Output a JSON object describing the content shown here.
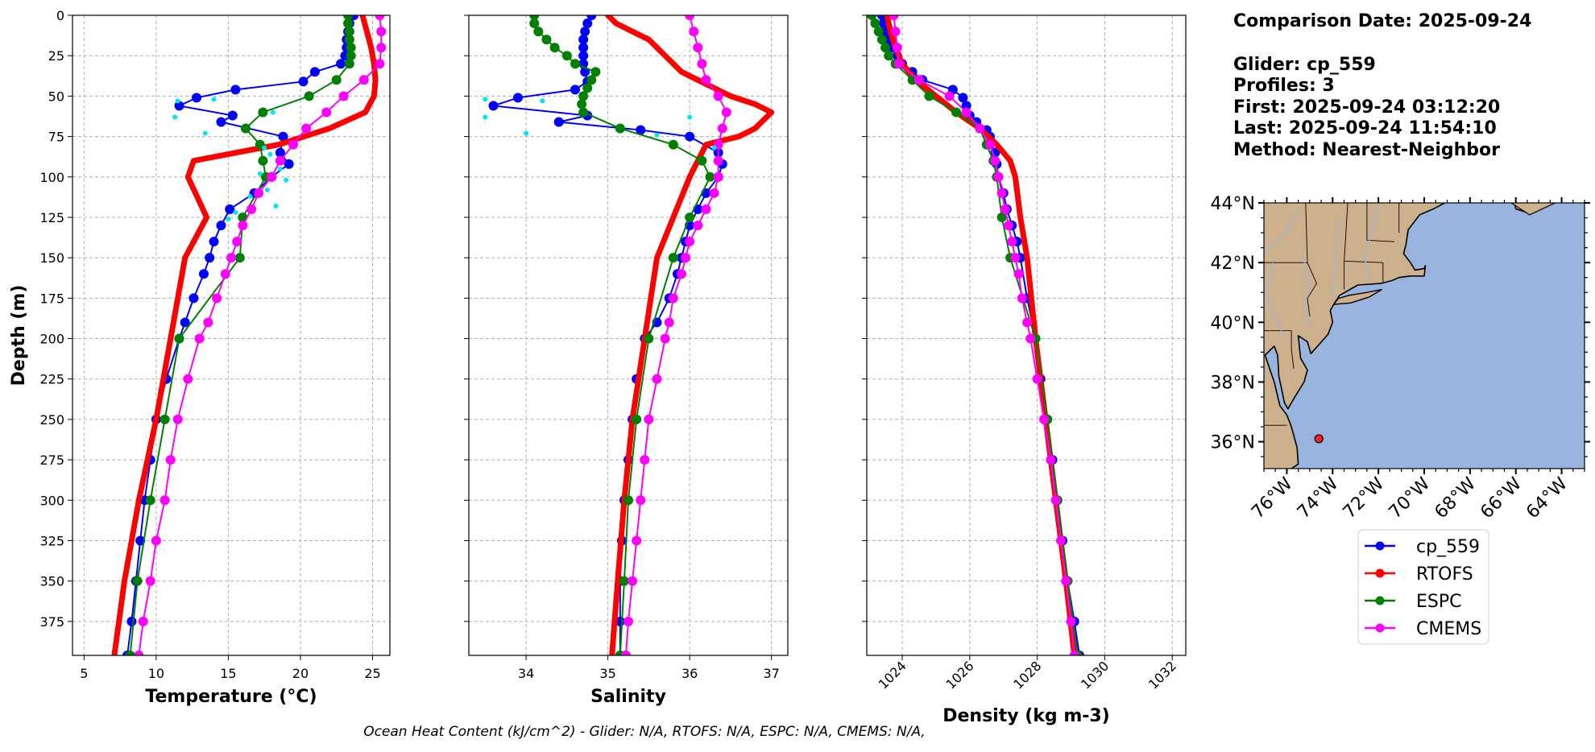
{
  "panels": [
    {
      "id": "temp",
      "xlabel": "Temperature (°C)",
      "xlim": [
        4.2,
        26.2
      ],
      "xticks": [
        5,
        10,
        15,
        20,
        25
      ],
      "rotate": false
    },
    {
      "id": "sal",
      "xlabel": "Salinity",
      "xlim": [
        33.3,
        37.2
      ],
      "xticks": [
        34,
        35,
        36,
        37
      ],
      "rotate": false
    },
    {
      "id": "dens",
      "xlabel": "Density (kg m-3)",
      "xlim": [
        1022.95,
        1032.4
      ],
      "xticks": [
        1024,
        1026,
        1028,
        1030,
        1032
      ],
      "rotate": true
    }
  ],
  "depth_axis": {
    "label": "Depth (m)",
    "ylim": [
      0,
      396
    ],
    "ticks": [
      0,
      25,
      50,
      75,
      100,
      125,
      150,
      175,
      200,
      225,
      250,
      275,
      300,
      325,
      350,
      375
    ]
  },
  "info": {
    "comparison": "Comparison Date: 2025-09-24",
    "glider": "Glider: cp_559",
    "profiles": "Profiles: 3",
    "first": "First: 2025-09-24 03:12:20",
    "last": "Last: 2025-09-24 11:54:10",
    "method": "Method: Nearest-Neighbor"
  },
  "ohc_text": "Ocean Heat Content (kJ/cm^2) - Glider: N/A,  RTOFS: N/A,  ESPC: N/A,  CMEMS: N/A,",
  "map": {
    "lat_range": [
      35.1,
      44.0
    ],
    "lon_range": [
      -77.0,
      -63.0
    ],
    "lat_labels": [
      "36°N",
      "38°N",
      "40°N",
      "42°N",
      "44°N"
    ],
    "lon_labels": [
      "76°W",
      "74°W",
      "72°W",
      "70°W",
      "68°W",
      "66°W",
      "64°W"
    ],
    "glider_position": {
      "lat": 36.1,
      "lon": -74.6
    },
    "land_color": "#cdb18c",
    "ocean_color": "#98b4df"
  },
  "legend": [
    {
      "name": "cp_559",
      "color": "#0000ff"
    },
    {
      "name": "RTOFS",
      "color": "#ff0000"
    },
    {
      "name": "ESPC",
      "color": "#008000"
    },
    {
      "name": "CMEMS",
      "color": "#ff00ff"
    }
  ],
  "chart_data": [
    {
      "type": "line",
      "xlabel": "Temperature (°C)",
      "ylabel": "Depth (m)",
      "xlim": [
        4.2,
        26.2
      ],
      "ylim": [
        396,
        0
      ],
      "grid": true,
      "series": [
        {
          "name": "cp_559",
          "color": "#0000ff",
          "depth": [
            0,
            5,
            10,
            15,
            20,
            25,
            30,
            35,
            41,
            46,
            51,
            56,
            62,
            66,
            75,
            85,
            92,
            100,
            110,
            120,
            130,
            140,
            150,
            160,
            175,
            190,
            200,
            225,
            250,
            275,
            300,
            325,
            350,
            375,
            396
          ],
          "values": [
            23.7,
            23.4,
            23.3,
            23.2,
            23.2,
            23.1,
            22.8,
            21.0,
            20.2,
            15.5,
            12.8,
            11.6,
            15.3,
            14.5,
            18.8,
            18.6,
            19.2,
            18.0,
            16.8,
            15.1,
            14.5,
            14.0,
            13.7,
            13.3,
            12.6,
            12.0,
            11.6,
            10.7,
            10.0,
            9.6,
            9.2,
            8.9,
            8.6,
            8.3,
            8.0
          ]
        },
        {
          "name": "RTOFS",
          "color": "#ff0000",
          "depth": [
            0,
            10,
            20,
            30,
            40,
            50,
            60,
            70,
            80,
            90,
            100,
            125,
            150,
            200,
            250,
            300,
            350,
            396
          ],
          "values": [
            24.3,
            24.6,
            24.9,
            25.1,
            25.2,
            25.1,
            24.5,
            22.0,
            18.5,
            12.6,
            12.2,
            13.5,
            12.0,
            11.0,
            10.0,
            8.8,
            7.8,
            7.1
          ]
        },
        {
          "name": "ESPC",
          "color": "#008000",
          "depth": [
            0,
            5,
            10,
            15,
            20,
            25,
            30,
            40,
            50,
            60,
            70,
            80,
            90,
            100,
            125,
            150,
            200,
            250,
            300,
            350,
            396
          ],
          "values": [
            23.3,
            23.3,
            23.4,
            23.4,
            23.5,
            23.5,
            23.4,
            22.5,
            20.6,
            17.4,
            16.2,
            17.2,
            17.4,
            17.6,
            16.0,
            15.8,
            11.6,
            10.6,
            9.6,
            8.7,
            8.2
          ]
        },
        {
          "name": "CMEMS",
          "color": "#ff00ff",
          "depth": [
            0,
            10,
            20,
            30,
            40,
            50,
            60,
            70,
            80,
            90,
            100,
            110,
            120,
            130,
            140,
            150,
            160,
            175,
            190,
            200,
            225,
            250,
            275,
            300,
            325,
            350,
            375,
            396
          ],
          "values": [
            25.5,
            25.6,
            25.6,
            25.5,
            24.4,
            23.0,
            21.8,
            20.4,
            19.5,
            18.6,
            18.0,
            17.1,
            16.6,
            16.0,
            15.6,
            15.2,
            14.8,
            14.2,
            13.6,
            13.0,
            12.2,
            11.5,
            11.0,
            10.6,
            10.0,
            9.6,
            9.1,
            8.8
          ]
        },
        {
          "name": "",
          "color": "#00e5ee",
          "style": "dots",
          "depth": [
            53,
            52,
            63,
            60,
            73,
            82,
            86,
            95,
            98,
            102,
            108,
            112,
            118,
            122,
            126
          ],
          "values": [
            11.5,
            14.0,
            11.3,
            18.1,
            13.4,
            17.5,
            17.9,
            18.6,
            17.2,
            19.0,
            17.7,
            16.5,
            18.3,
            15.5,
            15.0
          ]
        }
      ]
    },
    {
      "type": "line",
      "xlabel": "Salinity",
      "ylabel": "Depth (m)",
      "xlim": [
        33.3,
        37.2
      ],
      "ylim": [
        396,
        0
      ],
      "grid": true,
      "series": [
        {
          "name": "cp_559",
          "color": "#0000ff",
          "depth": [
            0,
            5,
            10,
            15,
            20,
            25,
            30,
            35,
            41,
            46,
            51,
            56,
            62,
            66,
            71,
            75,
            85,
            92,
            100,
            110,
            120,
            130,
            140,
            150,
            160,
            175,
            190,
            200,
            225,
            250,
            275,
            300,
            325,
            350,
            375,
            396
          ],
          "values": [
            34.8,
            34.75,
            34.72,
            34.7,
            34.7,
            34.7,
            34.7,
            34.72,
            34.75,
            34.6,
            33.9,
            33.6,
            34.75,
            34.4,
            35.4,
            36.0,
            36.35,
            36.4,
            36.35,
            36.2,
            36.1,
            36.0,
            35.95,
            35.9,
            35.85,
            35.75,
            35.6,
            35.45,
            35.35,
            35.3,
            35.25,
            35.2,
            35.17,
            35.15,
            35.15,
            35.15
          ]
        },
        {
          "name": "RTOFS",
          "color": "#ff0000",
          "depth": [
            0,
            5,
            10,
            15,
            20,
            25,
            30,
            35,
            40,
            45,
            50,
            55,
            60,
            65,
            70,
            75,
            80,
            85,
            90,
            100,
            125,
            150,
            200,
            250,
            300,
            350,
            396
          ],
          "values": [
            35.0,
            35.1,
            35.3,
            35.5,
            35.6,
            35.7,
            35.8,
            35.9,
            36.1,
            36.3,
            36.5,
            36.8,
            37.0,
            36.9,
            36.8,
            36.6,
            36.2,
            36.15,
            36.1,
            36.0,
            35.8,
            35.6,
            35.45,
            35.3,
            35.2,
            35.12,
            35.05
          ]
        },
        {
          "name": "ESPC",
          "color": "#008000",
          "depth": [
            0,
            5,
            10,
            15,
            20,
            25,
            30,
            35,
            40,
            45,
            50,
            55,
            60,
            70,
            80,
            90,
            100,
            125,
            150,
            200,
            250,
            300,
            350,
            396
          ],
          "values": [
            34.1,
            34.1,
            34.15,
            34.25,
            34.35,
            34.5,
            34.6,
            34.85,
            34.8,
            34.75,
            34.7,
            34.68,
            34.7,
            35.15,
            35.8,
            36.15,
            36.25,
            36.0,
            35.8,
            35.5,
            35.35,
            35.25,
            35.2,
            35.15
          ]
        },
        {
          "name": "CMEMS",
          "color": "#ff00ff",
          "depth": [
            0,
            10,
            20,
            30,
            40,
            50,
            60,
            70,
            80,
            90,
            100,
            110,
            120,
            130,
            140,
            150,
            160,
            175,
            190,
            200,
            225,
            250,
            275,
            300,
            325,
            350,
            375,
            396
          ],
          "values": [
            36.0,
            36.05,
            36.1,
            36.15,
            36.2,
            36.35,
            36.45,
            36.4,
            36.35,
            36.35,
            36.35,
            36.3,
            36.2,
            36.1,
            36.0,
            35.95,
            35.9,
            35.8,
            35.75,
            35.7,
            35.6,
            35.5,
            35.45,
            35.4,
            35.35,
            35.3,
            35.25,
            35.22
          ]
        },
        {
          "name": "",
          "color": "#00e5ee",
          "style": "dots",
          "depth": [
            52,
            53,
            63,
            63,
            73,
            74,
            82
          ],
          "values": [
            33.5,
            34.2,
            33.5,
            36.0,
            34.0,
            35.6,
            36.3
          ]
        }
      ]
    },
    {
      "type": "line",
      "xlabel": "Density (kg m-3)",
      "ylabel": "Depth (m)",
      "xlim": [
        1022.95,
        1032.4
      ],
      "ylim": [
        396,
        0
      ],
      "grid": true,
      "series": [
        {
          "name": "cp_559",
          "color": "#0000ff",
          "depth": [
            0,
            5,
            10,
            15,
            20,
            25,
            30,
            35,
            40,
            46,
            51,
            56,
            62,
            66,
            71,
            75,
            85,
            92,
            100,
            110,
            120,
            130,
            140,
            150,
            175,
            200,
            225,
            250,
            275,
            300,
            325,
            350,
            375,
            396
          ],
          "values": [
            1023.4,
            1023.45,
            1023.5,
            1023.6,
            1023.7,
            1023.85,
            1024.0,
            1024.3,
            1024.6,
            1025.5,
            1025.8,
            1025.9,
            1026.0,
            1026.2,
            1026.5,
            1026.6,
            1026.75,
            1026.8,
            1026.85,
            1027.0,
            1027.1,
            1027.25,
            1027.4,
            1027.5,
            1027.7,
            1027.95,
            1028.1,
            1028.3,
            1028.45,
            1028.6,
            1028.75,
            1028.9,
            1029.1,
            1029.25
          ]
        },
        {
          "name": "RTOFS",
          "color": "#ff0000",
          "depth": [
            0,
            10,
            20,
            30,
            40,
            50,
            60,
            70,
            80,
            90,
            100,
            125,
            150,
            200,
            250,
            300,
            350,
            396
          ],
          "values": [
            1023.55,
            1023.65,
            1023.8,
            1024.0,
            1024.4,
            1025.0,
            1025.6,
            1026.3,
            1026.8,
            1027.2,
            1027.35,
            1027.5,
            1027.7,
            1027.95,
            1028.25,
            1028.55,
            1028.85,
            1029.1
          ]
        },
        {
          "name": "ESPC",
          "color": "#008000",
          "depth": [
            0,
            5,
            10,
            15,
            20,
            25,
            30,
            40,
            50,
            60,
            70,
            80,
            90,
            100,
            125,
            150,
            200,
            250,
            300,
            350,
            396
          ],
          "values": [
            1023.1,
            1023.2,
            1023.3,
            1023.4,
            1023.5,
            1023.6,
            1023.8,
            1024.3,
            1024.8,
            1025.6,
            1026.3,
            1026.5,
            1026.7,
            1026.8,
            1026.95,
            1027.2,
            1027.95,
            1028.3,
            1028.6,
            1028.9,
            1029.2
          ]
        },
        {
          "name": "CMEMS",
          "color": "#ff00ff",
          "depth": [
            0,
            10,
            20,
            30,
            40,
            50,
            60,
            70,
            80,
            90,
            100,
            110,
            120,
            130,
            140,
            150,
            160,
            175,
            190,
            200,
            225,
            250,
            275,
            300,
            325,
            350,
            375,
            396
          ],
          "values": [
            1023.75,
            1023.8,
            1023.85,
            1023.9,
            1024.5,
            1025.4,
            1025.9,
            1026.3,
            1026.6,
            1026.75,
            1026.85,
            1026.95,
            1027.05,
            1027.15,
            1027.25,
            1027.35,
            1027.45,
            1027.55,
            1027.7,
            1027.8,
            1028.0,
            1028.2,
            1028.4,
            1028.55,
            1028.7,
            1028.85,
            1029.0,
            1029.1
          ]
        }
      ]
    }
  ]
}
